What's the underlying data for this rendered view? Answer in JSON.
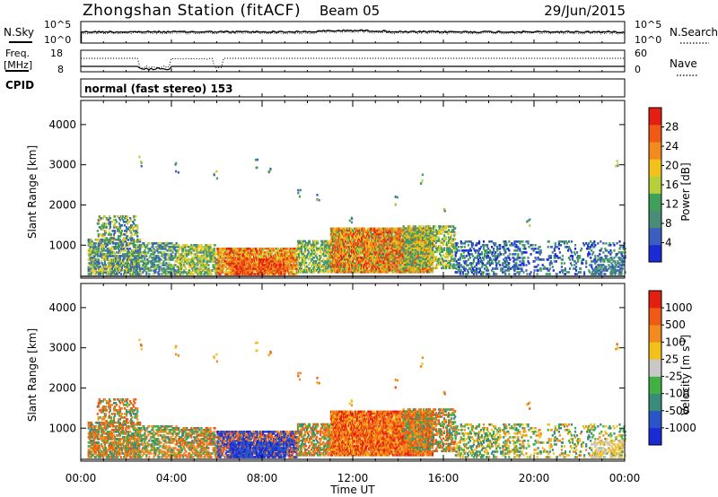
{
  "header": {
    "station": "Zhongshan Station (fitACF)",
    "beam": "Beam 05",
    "date": "29/Jun/2015"
  },
  "aux_panel_1": {
    "left_label": "N.Sky",
    "right_label": "N.Search",
    "y_top_label": "10^5",
    "y_bottom_label": "10^0",
    "right_top_label": "10^5",
    "right_bottom_label": "10^0"
  },
  "aux_panel_2": {
    "left_label_line1": "Freq.",
    "left_label_line2": "[MHz]",
    "right_label": "Nave",
    "left_top": "18",
    "left_bottom": "8",
    "right_top": "60",
    "right_bottom": "0"
  },
  "cpid": {
    "label": "CPID",
    "text": "normal (fast stereo) 153"
  },
  "chart_data": [
    {
      "type": "heatmap",
      "name": "power",
      "ylabel": "Slant Range [km]",
      "ylim": [
        180,
        4600
      ],
      "yticks": [
        "1000",
        "2000",
        "3000",
        "4000"
      ],
      "colorbar": {
        "label": "Power [dB]",
        "ticks": [
          "4",
          "8",
          "12",
          "16",
          "20",
          "24",
          "28"
        ],
        "colors": [
          "#1a2bd6",
          "#3a5fc0",
          "#4a8c7a",
          "#3fa05a",
          "#b6cf3a",
          "#f2c21a",
          "#f28a1e",
          "#f05a14",
          "#e41e12"
        ]
      }
    },
    {
      "type": "heatmap",
      "name": "velocity",
      "ylabel": "Slant Range [km]",
      "ylim": [
        180,
        4600
      ],
      "yticks": [
        "1000",
        "2000",
        "3000",
        "4000"
      ],
      "xlabel": "Time UT",
      "xticks": [
        "00:00",
        "04:00",
        "08:00",
        "12:00",
        "16:00",
        "20:00",
        "00:00"
      ],
      "colorbar": {
        "label": "Velocity [m s",
        "label_sup": "-1",
        "label_tail": "]",
        "ticks": [
          "1000",
          "500",
          "100",
          "25",
          "-25",
          "-100",
          "-500",
          "-1000"
        ],
        "colors": [
          "#1a2bd6",
          "#2a55c8",
          "#3a8c7a",
          "#44b044",
          "#c8c8c8",
          "#f2c21a",
          "#f28a1e",
          "#f05a14",
          "#e41e12"
        ]
      }
    }
  ]
}
